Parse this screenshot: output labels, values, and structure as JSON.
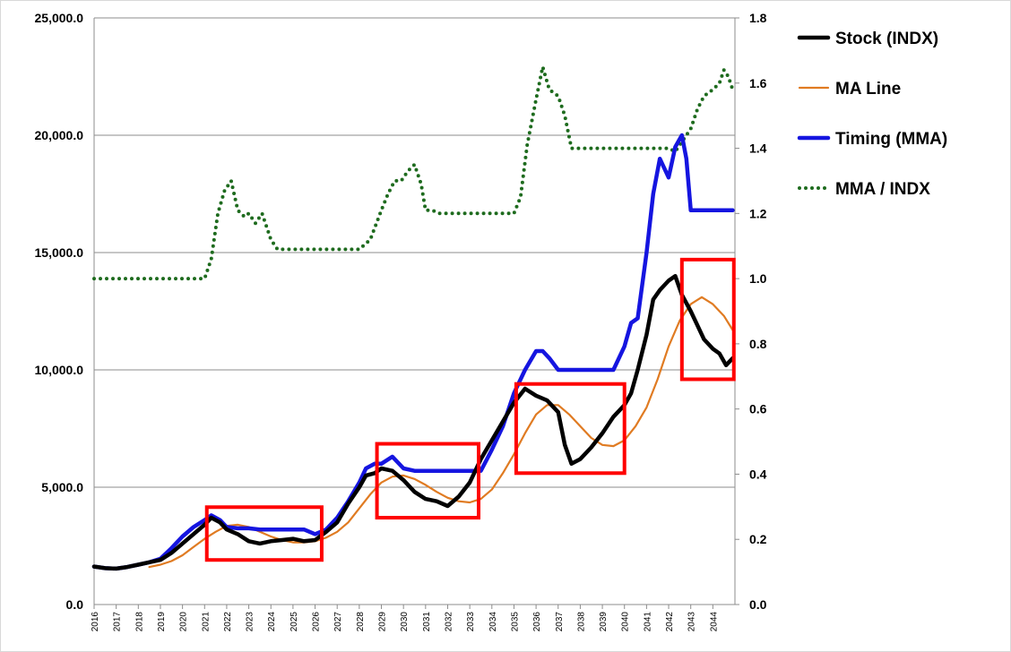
{
  "chart_data": {
    "type": "line",
    "title": "",
    "xlabel": "",
    "ylabel": "",
    "y2label": "",
    "x_range": [
      2016,
      2045
    ],
    "ylim": [
      0,
      25000
    ],
    "y2lim": [
      0,
      1.8
    ],
    "y_ticks": [
      "0.0",
      "5,000.0",
      "10,000.0",
      "15,000.0",
      "20,000.0",
      "25,000.0"
    ],
    "y2_ticks": [
      "0.0",
      "0.2",
      "0.4",
      "0.6",
      "0.8",
      "1.0",
      "1.2",
      "1.4",
      "1.6",
      "1.8"
    ],
    "x_tick_labels": [
      "2016",
      "2017",
      "2018",
      "2019",
      "2020",
      "2021",
      "2022",
      "2023",
      "2024",
      "2025",
      "2026",
      "2027",
      "2028",
      "2029",
      "2030",
      "2031",
      "2032",
      "2033",
      "2034",
      "2035",
      "2036",
      "2037",
      "2038",
      "2039",
      "2040",
      "2041",
      "2042",
      "2043",
      "2044"
    ],
    "grid": "horizontal",
    "legend_position": "right",
    "series": [
      {
        "name": "Stock (INDX)",
        "axis": "left",
        "color": "#000000",
        "style": "solid-thick",
        "x": [
          2016.0,
          2016.5,
          2017.0,
          2017.5,
          2018.0,
          2018.5,
          2019.0,
          2019.5,
          2020.0,
          2020.5,
          2021.0,
          2021.3,
          2021.7,
          2022.0,
          2022.5,
          2023.0,
          2023.5,
          2024.0,
          2024.5,
          2025.0,
          2025.5,
          2026.0,
          2026.5,
          2027.0,
          2027.5,
          2028.0,
          2028.3,
          2028.7,
          2029.0,
          2029.5,
          2030.0,
          2030.5,
          2031.0,
          2031.5,
          2032.0,
          2032.5,
          2033.0,
          2033.5,
          2034.0,
          2034.5,
          2035.0,
          2035.5,
          2036.0,
          2036.5,
          2037.0,
          2037.3,
          2037.6,
          2038.0,
          2038.5,
          2039.0,
          2039.5,
          2040.0,
          2040.3,
          2040.6,
          2041.0,
          2041.3,
          2041.6,
          2042.0,
          2042.3,
          2042.6,
          2043.0,
          2043.3,
          2043.6,
          2044.0,
          2044.3,
          2044.6,
          2044.9
        ],
        "y": [
          1620,
          1550,
          1530,
          1600,
          1700,
          1800,
          1900,
          2200,
          2600,
          3000,
          3400,
          3700,
          3500,
          3200,
          3000,
          2700,
          2600,
          2700,
          2750,
          2800,
          2700,
          2750,
          3100,
          3500,
          4300,
          5000,
          5500,
          5600,
          5800,
          5700,
          5300,
          4800,
          4500,
          4400,
          4200,
          4600,
          5200,
          6200,
          7000,
          7800,
          8600,
          9200,
          8900,
          8700,
          8200,
          6800,
          6000,
          6200,
          6700,
          7300,
          8000,
          8500,
          9000,
          10000,
          11500,
          13000,
          13400,
          13800,
          14000,
          13200,
          12500,
          11900,
          11300,
          10900,
          10700,
          10200,
          10500
        ]
      },
      {
        "name": "MA Line",
        "axis": "left",
        "color": "#e07b22",
        "style": "solid-thin",
        "x": [
          2018.5,
          2019.0,
          2019.5,
          2020.0,
          2020.5,
          2021.0,
          2021.5,
          2022.0,
          2022.5,
          2023.0,
          2023.5,
          2024.0,
          2024.5,
          2025.0,
          2025.5,
          2026.0,
          2026.5,
          2027.0,
          2027.5,
          2028.0,
          2028.5,
          2029.0,
          2029.5,
          2030.0,
          2030.5,
          2031.0,
          2031.5,
          2032.0,
          2032.5,
          2033.0,
          2033.5,
          2034.0,
          2034.5,
          2035.0,
          2035.5,
          2036.0,
          2036.5,
          2037.0,
          2037.5,
          2038.0,
          2038.5,
          2039.0,
          2039.5,
          2040.0,
          2040.5,
          2041.0,
          2041.5,
          2042.0,
          2042.5,
          2043.0,
          2043.5,
          2044.0,
          2044.5,
          2044.9
        ],
        "y": [
          1600,
          1700,
          1850,
          2100,
          2450,
          2800,
          3100,
          3350,
          3400,
          3300,
          3100,
          2900,
          2750,
          2650,
          2650,
          2700,
          2850,
          3100,
          3500,
          4100,
          4700,
          5200,
          5450,
          5500,
          5350,
          5100,
          4800,
          4550,
          4400,
          4350,
          4500,
          4900,
          5600,
          6400,
          7300,
          8100,
          8500,
          8500,
          8100,
          7600,
          7100,
          6800,
          6750,
          7000,
          7600,
          8400,
          9600,
          11000,
          12100,
          12800,
          13100,
          12800,
          12300,
          11700
        ]
      },
      {
        "name": "Timing (MMA)",
        "axis": "left",
        "color": "#1515e0",
        "style": "solid-thick",
        "x": [
          2016.0,
          2016.5,
          2017.0,
          2017.5,
          2018.0,
          2018.5,
          2019.0,
          2019.5,
          2020.0,
          2020.5,
          2021.0,
          2021.3,
          2021.7,
          2022.0,
          2022.5,
          2023.0,
          2023.5,
          2024.0,
          2024.5,
          2025.0,
          2025.5,
          2026.0,
          2026.5,
          2027.0,
          2027.5,
          2028.0,
          2028.3,
          2028.7,
          2029.0,
          2029.5,
          2030.0,
          2030.5,
          2031.0,
          2031.5,
          2032.0,
          2032.5,
          2033.0,
          2033.5,
          2034.0,
          2034.5,
          2035.0,
          2035.5,
          2036.0,
          2036.3,
          2036.6,
          2037.0,
          2037.5,
          2038.0,
          2038.5,
          2039.0,
          2039.5,
          2040.0,
          2040.3,
          2040.6,
          2041.0,
          2041.3,
          2041.6,
          2042.0,
          2042.3,
          2042.6,
          2042.8,
          2043.0,
          2043.5,
          2044.0,
          2044.5,
          2044.9
        ],
        "y": [
          1620,
          1550,
          1530,
          1600,
          1700,
          1800,
          1950,
          2400,
          2900,
          3300,
          3600,
          3800,
          3600,
          3300,
          3250,
          3250,
          3200,
          3200,
          3200,
          3200,
          3200,
          3000,
          3200,
          3700,
          4400,
          5200,
          5800,
          6000,
          6000,
          6300,
          5800,
          5700,
          5700,
          5700,
          5700,
          5700,
          5700,
          5700,
          6600,
          7600,
          9000,
          10000,
          10800,
          10800,
          10500,
          10000,
          10000,
          10000,
          10000,
          10000,
          10000,
          11000,
          12000,
          12200,
          15000,
          17500,
          19000,
          18200,
          19500,
          20000,
          19000,
          16800,
          16800,
          16800,
          16800,
          16800
        ]
      },
      {
        "name": "MMA / INDX",
        "axis": "right",
        "color": "#1e6b1e",
        "style": "dotted",
        "x": [
          2016.0,
          2021.0,
          2021.3,
          2021.6,
          2021.9,
          2022.2,
          2022.5,
          2022.8,
          2023.0,
          2023.3,
          2023.6,
          2024.0,
          2024.3,
          2024.6,
          2025.0,
          2025.3,
          2025.6,
          2026.0,
          2027.0,
          2028.0,
          2028.5,
          2029.0,
          2029.3,
          2029.6,
          2029.9,
          2030.2,
          2030.5,
          2030.8,
          2031.0,
          2031.3,
          2031.6,
          2032.0,
          2032.5,
          2033.0,
          2033.5,
          2034.0,
          2034.5,
          2035.0,
          2035.3,
          2035.6,
          2036.0,
          2036.3,
          2036.6,
          2037.0,
          2037.3,
          2037.6,
          2038.0,
          2038.3,
          2038.6,
          2039.0,
          2039.5,
          2040.0,
          2040.5,
          2041.0,
          2041.5,
          2042.0,
          2042.3,
          2042.6,
          2043.0,
          2043.3,
          2043.6,
          2044.0,
          2044.3,
          2044.5,
          2044.7,
          2044.9
        ],
        "y": [
          1.0,
          1.0,
          1.06,
          1.2,
          1.27,
          1.3,
          1.21,
          1.19,
          1.2,
          1.17,
          1.2,
          1.12,
          1.09,
          1.09,
          1.09,
          1.09,
          1.09,
          1.09,
          1.09,
          1.09,
          1.12,
          1.21,
          1.26,
          1.3,
          1.3,
          1.33,
          1.35,
          1.29,
          1.21,
          1.21,
          1.2,
          1.2,
          1.2,
          1.2,
          1.2,
          1.2,
          1.2,
          1.2,
          1.25,
          1.41,
          1.55,
          1.65,
          1.58,
          1.56,
          1.5,
          1.4,
          1.4,
          1.4,
          1.4,
          1.4,
          1.4,
          1.4,
          1.4,
          1.4,
          1.4,
          1.4,
          1.39,
          1.42,
          1.46,
          1.52,
          1.56,
          1.58,
          1.6,
          1.64,
          1.62,
          1.58
        ]
      }
    ],
    "annotations": [
      {
        "type": "rectangle",
        "color": "#ff0000",
        "x": [
          2021.1,
          2026.3
        ],
        "y": [
          1900,
          4150
        ]
      },
      {
        "type": "rectangle",
        "color": "#ff0000",
        "x": [
          2028.8,
          2033.4
        ],
        "y": [
          3700,
          6850
        ]
      },
      {
        "type": "rectangle",
        "color": "#ff0000",
        "x": [
          2035.1,
          2040.0
        ],
        "y": [
          5600,
          9400
        ]
      },
      {
        "type": "rectangle",
        "color": "#ff0000",
        "x": [
          2042.6,
          2044.95
        ],
        "y": [
          9600,
          14700
        ]
      }
    ]
  }
}
